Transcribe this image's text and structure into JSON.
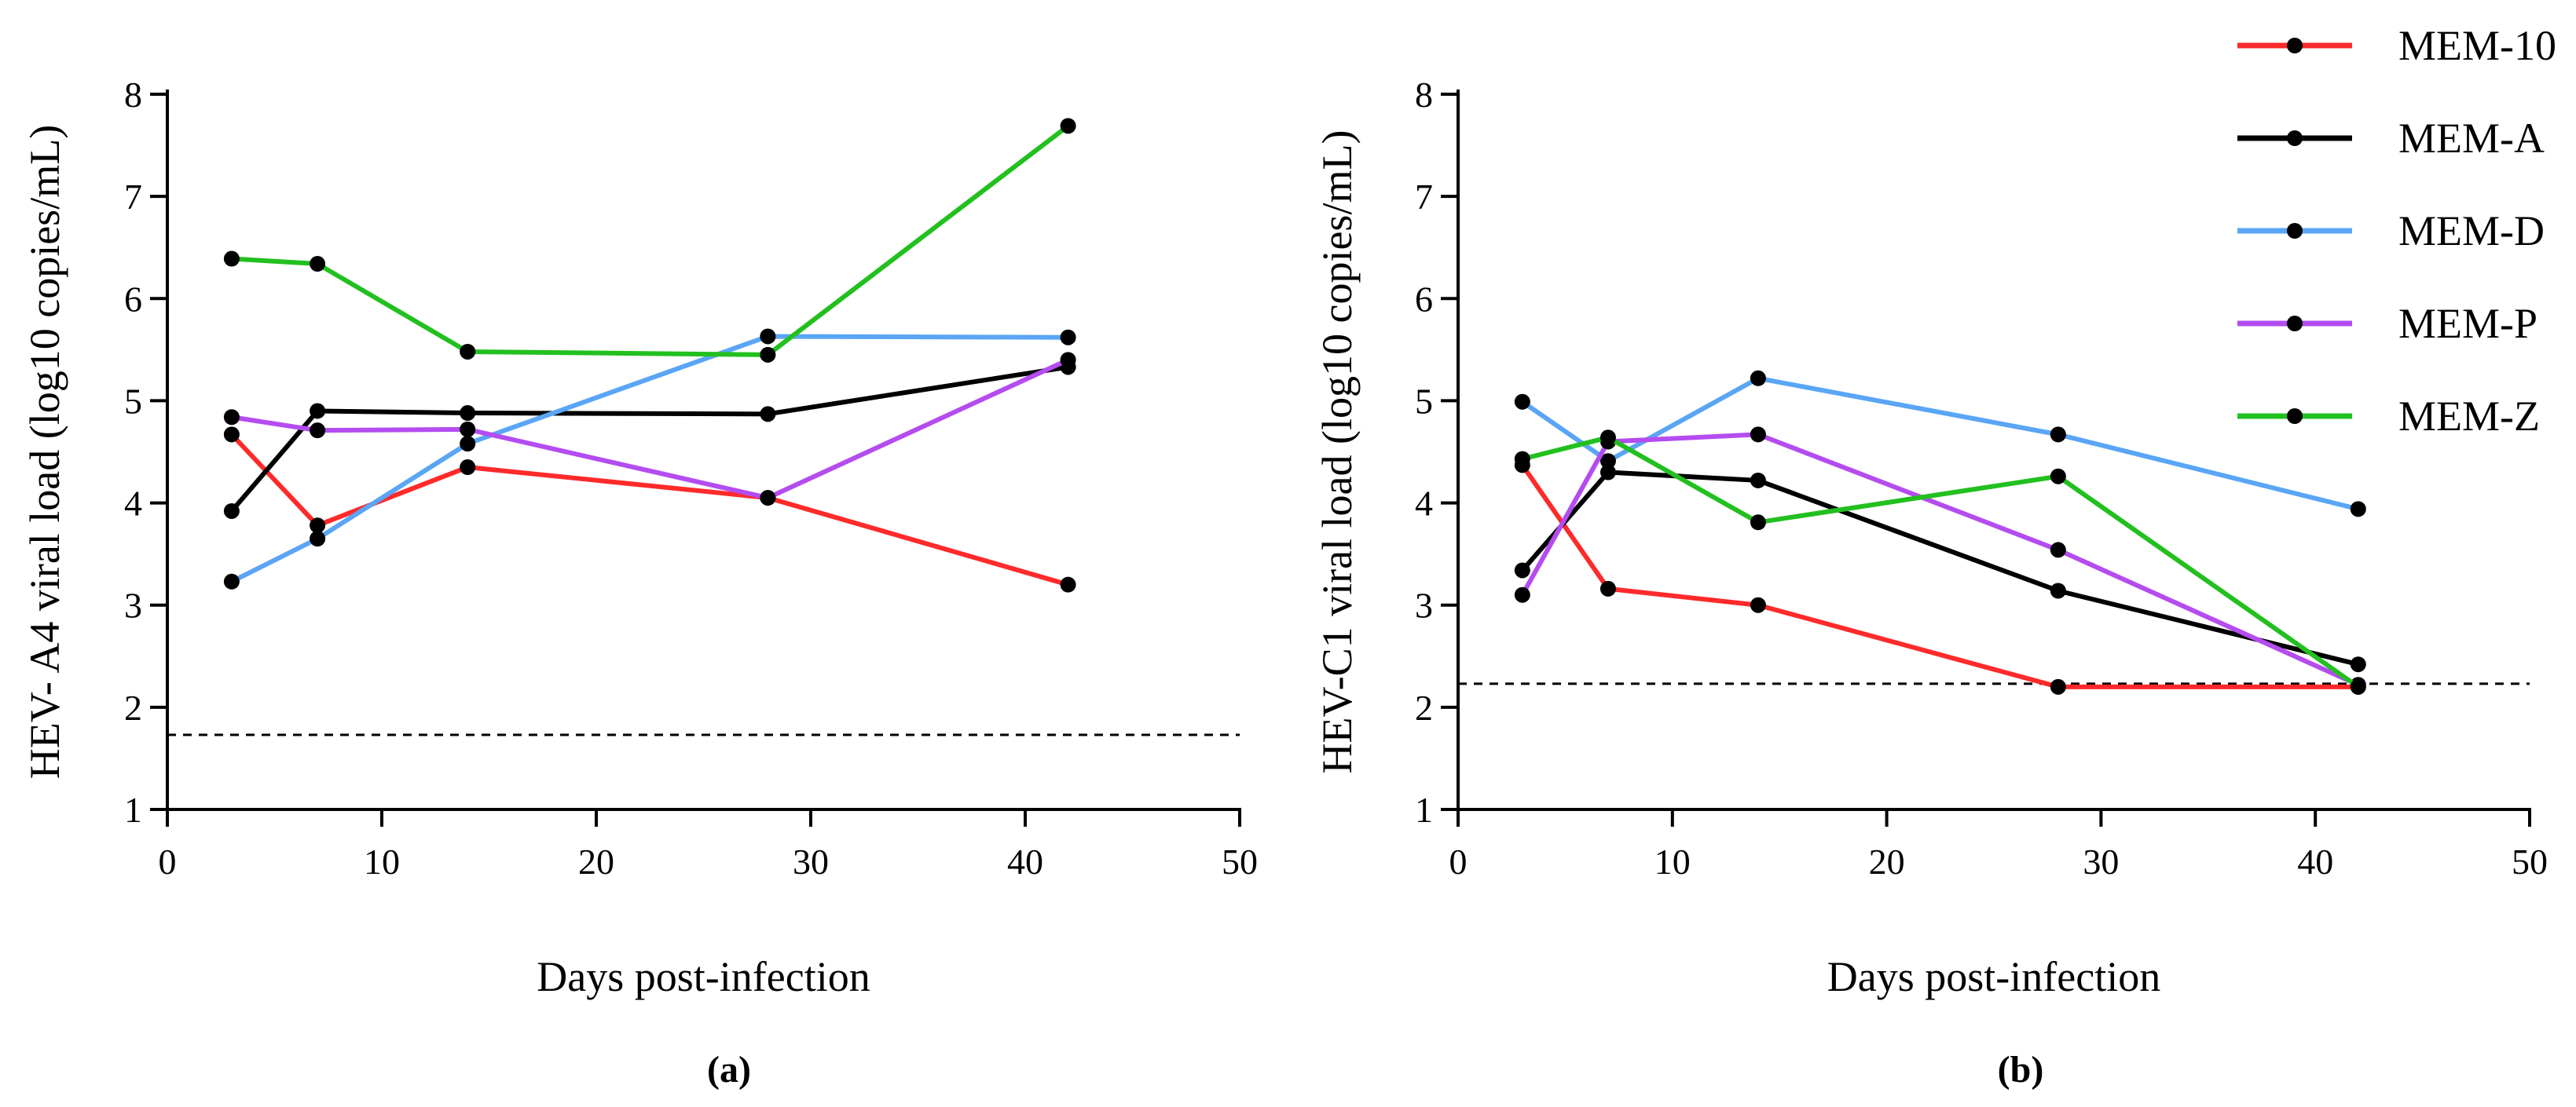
{
  "chart_data": [
    {
      "panel_label": "(a)",
      "type": "line",
      "xlabel": "Days post-infection",
      "ylabel": "HEV- A4 viral load (log10 copies/mL)",
      "xlim": [
        0,
        50
      ],
      "ylim": [
        1,
        8
      ],
      "x_ticks": [
        0,
        10,
        20,
        30,
        40,
        50
      ],
      "y_ticks": [
        1,
        2,
        3,
        4,
        5,
        6,
        7,
        8
      ],
      "detection_limit": 1.73,
      "series": [
        {
          "name": "MEM-10",
          "color": "#ff2a2a",
          "x": [
            3,
            7,
            14,
            28,
            42
          ],
          "y": [
            4.67,
            3.78,
            4.35,
            4.05,
            3.2
          ]
        },
        {
          "name": "MEM-A",
          "color": "#000000",
          "x": [
            3,
            7,
            14,
            28,
            42
          ],
          "y": [
            3.92,
            4.9,
            4.88,
            4.87,
            5.33
          ]
        },
        {
          "name": "MEM-D",
          "color": "#5aa5f5",
          "x": [
            3,
            7,
            14,
            28,
            42
          ],
          "y": [
            3.23,
            3.65,
            4.58,
            5.63,
            5.62
          ]
        },
        {
          "name": "MEM-P",
          "color": "#b44cf0",
          "x": [
            3,
            7,
            14,
            28,
            42
          ],
          "y": [
            4.84,
            4.71,
            4.72,
            4.05,
            5.4
          ]
        },
        {
          "name": "MEM-Z",
          "color": "#22c01f",
          "x": [
            3,
            7,
            14,
            28,
            42
          ],
          "y": [
            6.39,
            6.34,
            5.48,
            5.45,
            7.69
          ]
        }
      ]
    },
    {
      "panel_label": "(b)",
      "type": "line",
      "xlabel": "Days post-infection",
      "ylabel": "HEV-C1 viral load (log10 copies/mL)",
      "xlim": [
        0,
        50
      ],
      "ylim": [
        1,
        8
      ],
      "x_ticks": [
        0,
        10,
        20,
        30,
        40,
        50
      ],
      "y_ticks": [
        1,
        2,
        3,
        4,
        5,
        6,
        7,
        8
      ],
      "detection_limit": 2.23,
      "series": [
        {
          "name": "MEM-10",
          "color": "#ff2a2a",
          "x": [
            3,
            7,
            14,
            28,
            42
          ],
          "y": [
            4.37,
            3.16,
            3.0,
            2.2,
            2.2
          ]
        },
        {
          "name": "MEM-A",
          "color": "#000000",
          "x": [
            3,
            7,
            14,
            28,
            42
          ],
          "y": [
            3.34,
            4.3,
            4.22,
            3.14,
            2.42
          ]
        },
        {
          "name": "MEM-D",
          "color": "#5aa5f5",
          "x": [
            3,
            7,
            14,
            28,
            42
          ],
          "y": [
            4.99,
            4.41,
            5.22,
            4.67,
            3.94
          ]
        },
        {
          "name": "MEM-P",
          "color": "#b44cf0",
          "x": [
            3,
            7,
            14,
            28,
            42
          ],
          "y": [
            3.1,
            4.6,
            4.67,
            3.54,
            2.22
          ]
        },
        {
          "name": "MEM-Z",
          "color": "#22c01f",
          "x": [
            3,
            7,
            14,
            28,
            42
          ],
          "y": [
            4.43,
            4.64,
            3.81,
            4.26,
            2.2
          ]
        }
      ]
    }
  ],
  "legend": [
    {
      "name": "MEM-10",
      "color": "#ff2a2a"
    },
    {
      "name": "MEM-A",
      "color": "#000000"
    },
    {
      "name": "MEM-D",
      "color": "#5aa5f5"
    },
    {
      "name": "MEM-P",
      "color": "#b44cf0"
    },
    {
      "name": "MEM-Z",
      "color": "#22c01f"
    }
  ]
}
